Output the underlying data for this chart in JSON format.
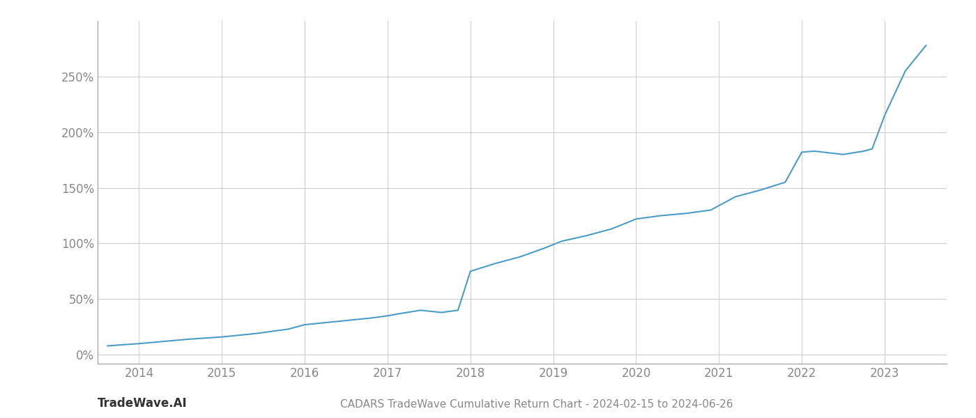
{
  "title": "CADARS TradeWave Cumulative Return Chart - 2024-02-15 to 2024-06-26",
  "watermark": "TradeWave.AI",
  "line_color": "#4a9cc7",
  "background_color": "#ffffff",
  "grid_color": "#cccccc",
  "x_years": [
    2014,
    2015,
    2016,
    2017,
    2018,
    2019,
    2020,
    2021,
    2022,
    2023
  ],
  "x_values": [
    2013.62,
    2014.0,
    2014.3,
    2014.6,
    2015.0,
    2015.4,
    2015.8,
    2016.0,
    2016.4,
    2016.8,
    2017.0,
    2017.15,
    2017.4,
    2017.65,
    2017.85,
    2018.0,
    2018.3,
    2018.6,
    2018.9,
    2019.1,
    2019.4,
    2019.7,
    2020.0,
    2020.3,
    2020.6,
    2020.9,
    2021.2,
    2021.5,
    2021.8,
    2022.0,
    2022.15,
    2022.5,
    2022.75,
    2022.85,
    2023.0,
    2023.25,
    2023.5
  ],
  "y_values": [
    8,
    10,
    12,
    14,
    16,
    19,
    23,
    27,
    30,
    33,
    35,
    37,
    40,
    38,
    40,
    75,
    82,
    88,
    96,
    102,
    107,
    113,
    122,
    125,
    127,
    130,
    142,
    148,
    155,
    182,
    183,
    180,
    183,
    185,
    215,
    255,
    278
  ],
  "yticks": [
    0,
    50,
    100,
    150,
    200,
    250
  ],
  "ylim": [
    -8,
    300
  ],
  "xlim": [
    2013.5,
    2023.75
  ],
  "tick_color": "#888888",
  "axis_color": "#333333",
  "title_color": "#888888",
  "watermark_color": "#333333",
  "title_fontsize": 11,
  "tick_fontsize": 12,
  "watermark_fontsize": 12,
  "line_width": 1.5
}
